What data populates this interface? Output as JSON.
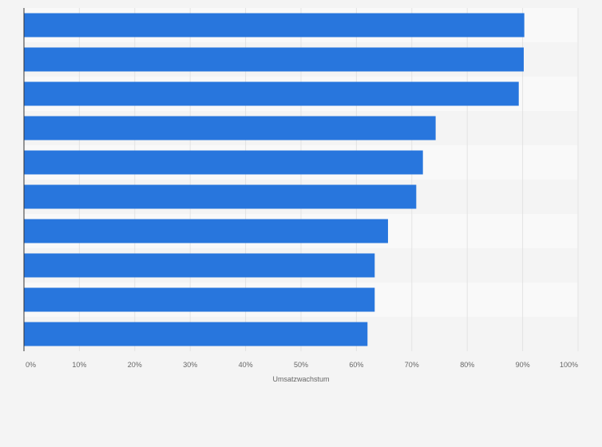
{
  "chart_data": {
    "type": "bar",
    "orientation": "horizontal",
    "categories": [
      "",
      "",
      "",
      "",
      "",
      "",
      "",
      "",
      "",
      ""
    ],
    "values": [
      90.3,
      90.2,
      89.3,
      74.3,
      72.0,
      70.8,
      65.7,
      63.3,
      63.3,
      62.0
    ],
    "xlabel": "Umsatzwachstum",
    "ylabel": "",
    "xlim": [
      0,
      100
    ],
    "ticks": [
      "0%",
      "10%",
      "20%",
      "30%",
      "40%",
      "50%",
      "60%",
      "70%",
      "80%",
      "90%",
      "100%"
    ],
    "grid": "vertical",
    "legend": "none",
    "colors": {
      "bar": "#2876dd",
      "band_light": "#f9f9f9",
      "band_dark": "#f4f4f4",
      "grid": "#e3e3e3",
      "axis": "#333333"
    }
  }
}
